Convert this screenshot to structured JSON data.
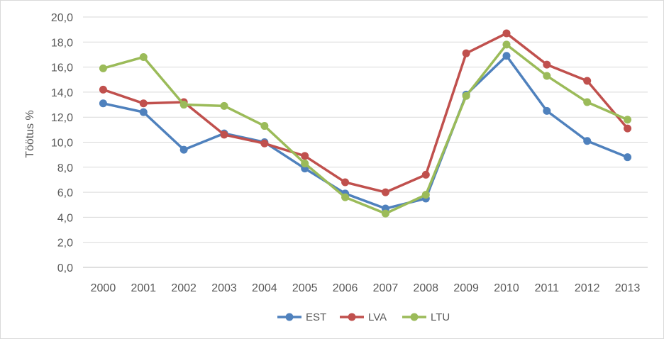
{
  "chart_data": {
    "type": "line",
    "title": "",
    "xlabel": "",
    "ylabel": "Töötus %",
    "x": [
      "2000",
      "2001",
      "2002",
      "2003",
      "2004",
      "2005",
      "2006",
      "2007",
      "2008",
      "2009",
      "2010",
      "2011",
      "2012",
      "2013"
    ],
    "ylim": [
      0,
      20
    ],
    "yticks": [
      "0,0",
      "2,0",
      "4,0",
      "6,0",
      "8,0",
      "10,0",
      "12,0",
      "14,0",
      "16,0",
      "18,0",
      "20,0"
    ],
    "grid": true,
    "legend": "bottom",
    "series": [
      {
        "name": "EST",
        "color": "#4f81bd",
        "values": [
          13.1,
          12.4,
          9.4,
          10.7,
          10.0,
          7.9,
          5.9,
          4.7,
          5.5,
          13.8,
          16.9,
          12.5,
          10.1,
          8.8
        ]
      },
      {
        "name": "LVA",
        "color": "#c0504d",
        "values": [
          14.2,
          13.1,
          13.2,
          10.6,
          9.9,
          8.9,
          6.8,
          6.0,
          7.4,
          17.1,
          18.7,
          16.2,
          14.9,
          11.1
        ]
      },
      {
        "name": "LTU",
        "color": "#9bbb59",
        "values": [
          15.9,
          16.8,
          13.0,
          12.9,
          11.3,
          8.3,
          5.6,
          4.3,
          5.8,
          13.7,
          17.8,
          15.3,
          13.2,
          11.8
        ]
      }
    ]
  }
}
